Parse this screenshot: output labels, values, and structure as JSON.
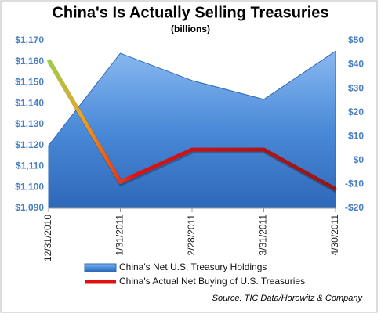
{
  "chart_data": {
    "type": "area-line",
    "title": "China's Is Actually Selling Treasuries",
    "subtitle": "(billions)",
    "source": "Source:  TIC Data/Horowitz & Company",
    "categories": [
      "12/31/2010",
      "1/31/2011",
      "2/28/2011",
      "3/31/2011",
      "4/30/2011"
    ],
    "series": [
      {
        "name": "China's Net U.S. Treasury Holdings",
        "color": "#4a8ad8",
        "axis": "y",
        "values": [
          1120,
          1164,
          1151,
          1142,
          1165
        ]
      },
      {
        "name": "China's Actual Net Buying of U.S. Treasuries",
        "color": "#e01010",
        "axis": "y2",
        "values": [
          42,
          -9,
          4.5,
          4.5,
          -12
        ]
      }
    ],
    "ylim": [
      1090,
      1170
    ],
    "yticks": [
      {
        "value": 1090,
        "label": "$1,090"
      },
      {
        "value": 1100,
        "label": "$1,100"
      },
      {
        "value": 1110,
        "label": "$1,110"
      },
      {
        "value": 1120,
        "label": "$1,120"
      },
      {
        "value": 1130,
        "label": "$1,130"
      },
      {
        "value": 1140,
        "label": "$1,140"
      },
      {
        "value": 1150,
        "label": "$1,150"
      },
      {
        "value": 1160,
        "label": "$1,160"
      },
      {
        "value": 1170,
        "label": "$1,170"
      }
    ],
    "y2lim": [
      -20,
      50
    ],
    "y2ticks": [
      {
        "value": -20,
        "label": "-$20"
      },
      {
        "value": -10,
        "label": "-$10"
      },
      {
        "value": 0,
        "label": "$0"
      },
      {
        "value": 10,
        "label": "$10"
      },
      {
        "value": 20,
        "label": "$20"
      },
      {
        "value": 30,
        "label": "$30"
      },
      {
        "value": 40,
        "label": "$40"
      },
      {
        "value": 50,
        "label": "$50"
      }
    ],
    "legend": "bottom"
  }
}
